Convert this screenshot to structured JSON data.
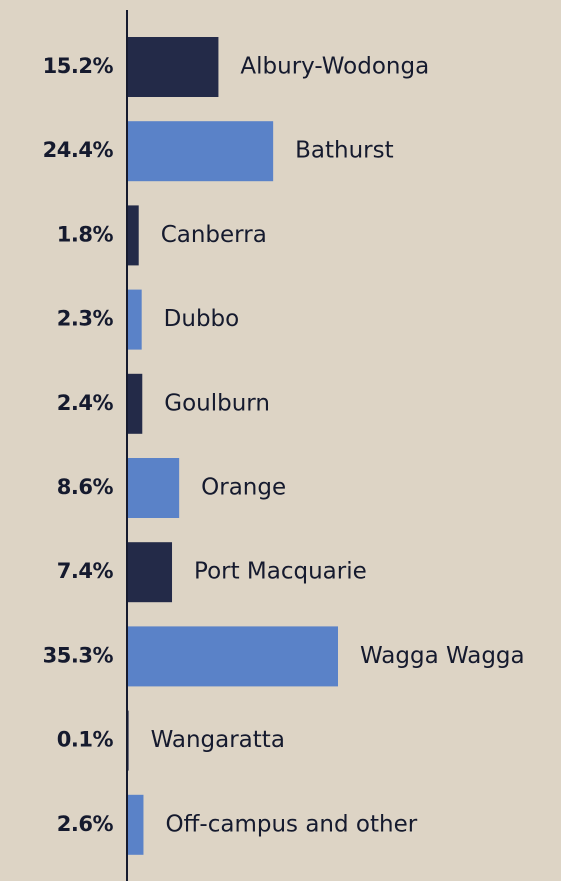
{
  "chart_data": {
    "type": "bar",
    "orientation": "horizontal",
    "categories": [
      "Albury-Wodonga",
      "Bathurst",
      "Canberra",
      "Dubbo",
      "Goulburn",
      "Orange",
      "Port Macquarie",
      "Wagga Wagga",
      "Wangaratta",
      "Off-campus and other"
    ],
    "values": [
      15.2,
      24.4,
      1.8,
      2.3,
      2.4,
      8.6,
      7.4,
      35.3,
      0.1,
      2.6
    ],
    "value_labels": [
      "15.2%",
      "24.4%",
      "1.8%",
      "2.3%",
      "2.4%",
      "8.6%",
      "7.4%",
      "35.3%",
      "0.1%",
      "2.6%"
    ],
    "colors": [
      "#232a48",
      "#5a82c8",
      "#232a48",
      "#5a82c8",
      "#232a48",
      "#5a82c8",
      "#232a48",
      "#5a82c8",
      "#232a48",
      "#5a82c8"
    ]
  }
}
